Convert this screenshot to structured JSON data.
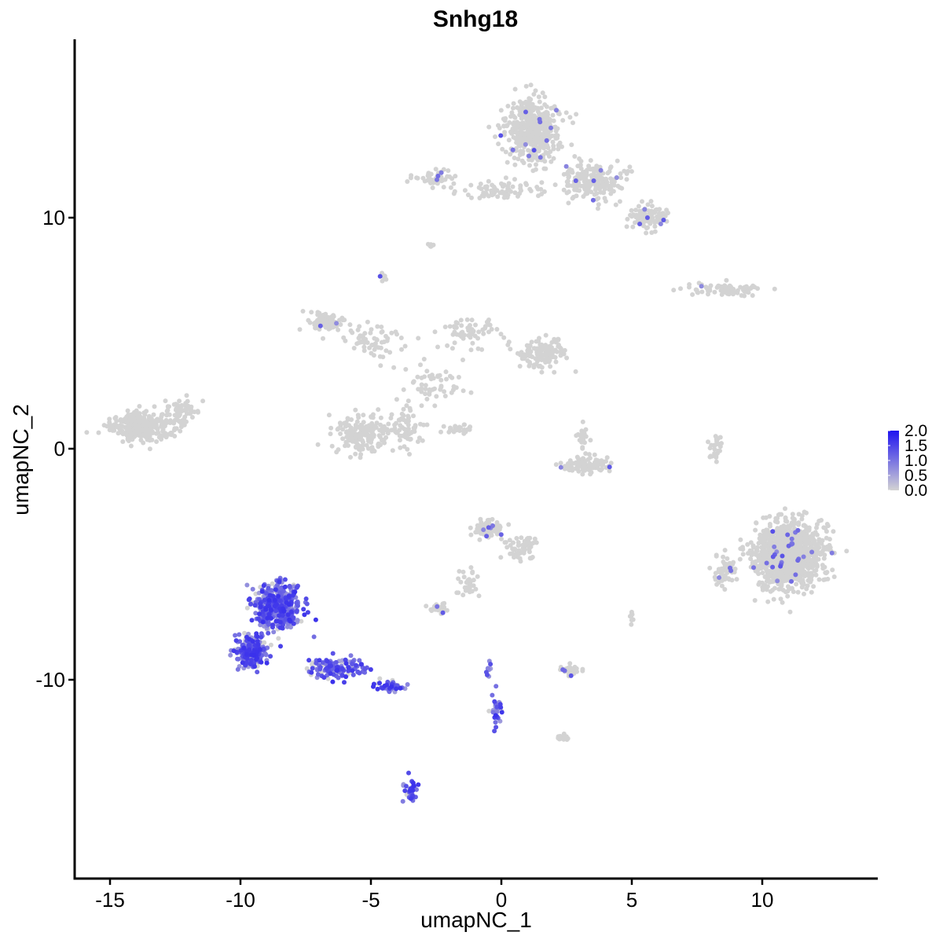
{
  "chart_data": {
    "type": "scatter",
    "title": "Snhg18",
    "xlabel": "umapNC_1",
    "ylabel": "umapNC_2",
    "xlim": [
      -16.5,
      14.5
    ],
    "ylim": [
      -18.5,
      17.5
    ],
    "xticks": [
      -15,
      -10,
      -5,
      0,
      5,
      10
    ],
    "xtick_labels": [
      "-15",
      "-10",
      "-5",
      "0",
      "5",
      "10"
    ],
    "yticks": [
      -10,
      0,
      10
    ],
    "ytick_labels": [
      "-10",
      "0",
      "10"
    ],
    "grid": false,
    "legend": {
      "type": "colorbar",
      "placement": "right",
      "values": [
        2.0,
        1.5,
        1.0,
        0.5,
        0.0
      ],
      "labels": [
        "2.0",
        "1.5",
        "1.0",
        "0.5",
        "0.0"
      ],
      "low_color": "#d3d3d3",
      "high_color": "#0000ff"
    },
    "clusters": [
      {
        "center": [
          1.2,
          13.8
        ],
        "spread": [
          0.85,
          1.2
        ],
        "n": 480,
        "expr": 0.02
      },
      {
        "center": [
          3.5,
          11.6
        ],
        "spread": [
          1.0,
          0.65
        ],
        "n": 190,
        "expr": 0.02
      },
      {
        "center": [
          5.6,
          10.0
        ],
        "spread": [
          0.7,
          0.4
        ],
        "n": 110,
        "expr": 0.03
      },
      {
        "center": [
          0.0,
          11.2
        ],
        "spread": [
          1.3,
          0.3
        ],
        "n": 70,
        "expr": 0.0
      },
      {
        "center": [
          -2.6,
          11.7
        ],
        "spread": [
          0.65,
          0.3
        ],
        "n": 50,
        "expr": 0.08
      },
      {
        "center": [
          -2.7,
          8.8
        ],
        "spread": [
          0.12,
          0.08
        ],
        "n": 8,
        "expr": 0.0
      },
      {
        "center": [
          -4.5,
          7.4
        ],
        "spread": [
          0.15,
          0.18
        ],
        "n": 9,
        "expr": 0.1
      },
      {
        "center": [
          8.6,
          6.9
        ],
        "spread": [
          1.2,
          0.22
        ],
        "n": 90,
        "expr": 0.02
      },
      {
        "center": [
          -6.8,
          5.5
        ],
        "spread": [
          0.8,
          0.35
        ],
        "n": 70,
        "expr": 0.03
      },
      {
        "center": [
          -5.0,
          4.7
        ],
        "spread": [
          1.1,
          0.6
        ],
        "n": 60,
        "expr": 0.0
      },
      {
        "center": [
          -1.2,
          5.1
        ],
        "spread": [
          0.8,
          0.6
        ],
        "n": 60,
        "expr": 0.0
      },
      {
        "center": [
          1.6,
          4.1
        ],
        "spread": [
          0.8,
          0.55
        ],
        "n": 130,
        "expr": 0.0
      },
      {
        "center": [
          -2.6,
          2.8
        ],
        "spread": [
          1.0,
          0.7
        ],
        "n": 55,
        "expr": 0.0
      },
      {
        "center": [
          -5.3,
          0.6
        ],
        "spread": [
          0.9,
          0.7
        ],
        "n": 180,
        "expr": 0.0
      },
      {
        "center": [
          -3.7,
          0.9
        ],
        "spread": [
          0.55,
          0.7
        ],
        "n": 70,
        "expr": 0.0
      },
      {
        "center": [
          -1.5,
          0.9
        ],
        "spread": [
          0.6,
          0.18
        ],
        "n": 25,
        "expr": 0.0
      },
      {
        "center": [
          -13.8,
          1.0
        ],
        "spread": [
          0.9,
          0.5
        ],
        "n": 320,
        "expr": 0.0
      },
      {
        "center": [
          -12.3,
          1.6
        ],
        "spread": [
          0.6,
          0.5
        ],
        "n": 60,
        "expr": 0.0
      },
      {
        "center": [
          3.2,
          -0.7
        ],
        "spread": [
          0.75,
          0.3
        ],
        "n": 100,
        "expr": 0.02
      },
      {
        "center": [
          3.1,
          0.5
        ],
        "spread": [
          0.2,
          0.45
        ],
        "n": 20,
        "expr": 0.0
      },
      {
        "center": [
          8.2,
          0.1
        ],
        "spread": [
          0.22,
          0.55
        ],
        "n": 28,
        "expr": 0.0
      },
      {
        "center": [
          11.0,
          -4.6
        ],
        "spread": [
          1.05,
          1.15
        ],
        "n": 1100,
        "expr": 0.025
      },
      {
        "center": [
          8.6,
          -5.3
        ],
        "spread": [
          0.4,
          0.6
        ],
        "n": 60,
        "expr": 0.05
      },
      {
        "center": [
          -0.5,
          -3.5
        ],
        "spread": [
          0.5,
          0.3
        ],
        "n": 90,
        "expr": 0.03
      },
      {
        "center": [
          0.7,
          -4.3
        ],
        "spread": [
          0.55,
          0.45
        ],
        "n": 60,
        "expr": 0.0
      },
      {
        "center": [
          -1.3,
          -5.8
        ],
        "spread": [
          0.35,
          0.5
        ],
        "n": 30,
        "expr": 0.0
      },
      {
        "center": [
          -2.4,
          -6.9
        ],
        "spread": [
          0.3,
          0.15
        ],
        "n": 30,
        "expr": 0.05
      },
      {
        "center": [
          2.6,
          -9.6
        ],
        "spread": [
          0.35,
          0.2
        ],
        "n": 40,
        "expr": 0.05
      },
      {
        "center": [
          2.3,
          -12.5
        ],
        "spread": [
          0.25,
          0.12
        ],
        "n": 18,
        "expr": 0.12
      },
      {
        "center": [
          5.0,
          -7.3
        ],
        "spread": [
          0.1,
          0.2
        ],
        "n": 8,
        "expr": 0.0
      },
      {
        "center": [
          -8.6,
          -6.8
        ],
        "spread": [
          0.75,
          0.85
        ],
        "n": 420,
        "expr": 0.85
      },
      {
        "center": [
          -9.6,
          -8.8
        ],
        "spread": [
          0.5,
          0.55
        ],
        "n": 260,
        "expr": 0.85
      },
      {
        "center": [
          -6.3,
          -9.5
        ],
        "spread": [
          0.95,
          0.35
        ],
        "n": 150,
        "expr": 0.8
      },
      {
        "center": [
          -4.3,
          -10.3
        ],
        "spread": [
          0.5,
          0.2
        ],
        "n": 45,
        "expr": 0.8
      },
      {
        "center": [
          -3.5,
          -14.8
        ],
        "spread": [
          0.2,
          0.4
        ],
        "n": 35,
        "expr": 0.8
      },
      {
        "center": [
          -0.2,
          -11.3
        ],
        "spread": [
          0.18,
          0.65
        ],
        "n": 30,
        "expr": 0.7
      },
      {
        "center": [
          -0.5,
          -9.6
        ],
        "spread": [
          0.1,
          0.35
        ],
        "n": 10,
        "expr": 0.6
      }
    ]
  }
}
